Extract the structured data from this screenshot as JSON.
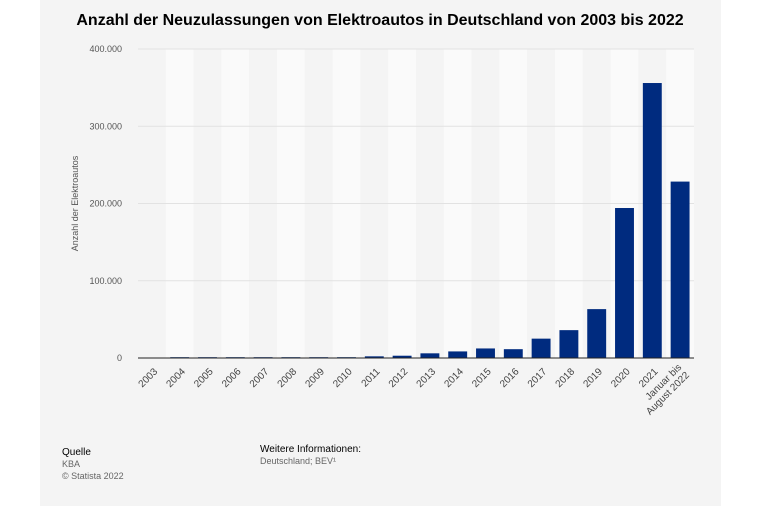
{
  "chart_data": {
    "type": "bar",
    "title": "Anzahl der Neuzulassungen von Elektroautos in Deutschland von 2003 bis 2022",
    "xlabel": "",
    "ylabel": "Anzahl der Elektroautos",
    "ylim": [
      0,
      400000
    ],
    "yticks": [
      0,
      100000,
      200000,
      300000,
      400000
    ],
    "ytick_labels": [
      "0",
      "100.000",
      "200.000",
      "300.000",
      "400.000"
    ],
    "grid": true,
    "bar_color": "#002b7f",
    "categories": [
      "2003",
      "2004",
      "2005",
      "2006",
      "2007",
      "2008",
      "2009",
      "2010",
      "2011",
      "2012",
      "2013",
      "2014",
      "2015",
      "2016",
      "2017",
      "2018",
      "2019",
      "2020",
      "2021",
      "Januar bis August 2022"
    ],
    "category_lines": [
      [
        "2003"
      ],
      [
        "2004"
      ],
      [
        "2005"
      ],
      [
        "2006"
      ],
      [
        "2007"
      ],
      [
        "2008"
      ],
      [
        "2009"
      ],
      [
        "2010"
      ],
      [
        "2011"
      ],
      [
        "2012"
      ],
      [
        "2013"
      ],
      [
        "2014"
      ],
      [
        "2015"
      ],
      [
        "2016"
      ],
      [
        "2017"
      ],
      [
        "2018"
      ],
      [
        "2019"
      ],
      [
        "2020"
      ],
      [
        "2021"
      ],
      [
        "Januar bis",
        "August 2022"
      ]
    ],
    "values": [
      0,
      19,
      47,
      19,
      8,
      36,
      162,
      541,
      2154,
      2956,
      6051,
      8522,
      12363,
      11410,
      25056,
      36062,
      63281,
      194163,
      355961,
      228366
    ]
  },
  "footer": {
    "source_heading": "Quelle",
    "source_name": "KBA",
    "copyright": "© Statista 2022",
    "info_heading": "Weitere Informationen:",
    "info_text": "Deutschland; BEV¹"
  }
}
